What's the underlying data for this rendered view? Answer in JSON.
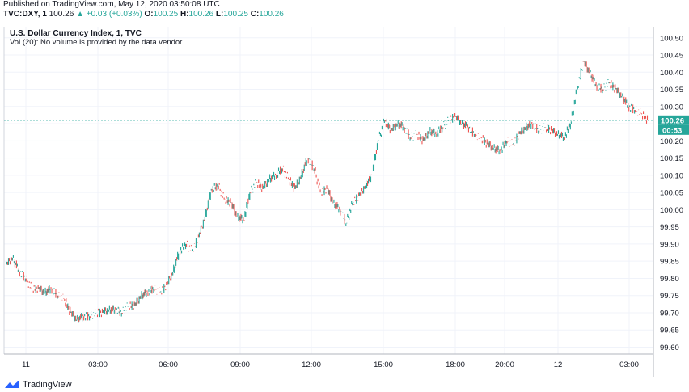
{
  "header": {
    "published": "Published on TradingView.com, May 12, 2020 03:50:08 UTC",
    "symbol": "TVC:DXY, 1",
    "price": "100.26",
    "change": "+0.03 (+0.03%)",
    "o_label": "O:",
    "o_value": "100.25",
    "h_label": "H:",
    "h_value": "100.26",
    "l_label": "L:",
    "l_value": "100.25",
    "c_label": "C:",
    "c_value": "100.26"
  },
  "colors": {
    "up": "#26a69a",
    "down": "#ef5350",
    "price_line": "#26a69a"
  },
  "chart_data": {
    "type": "line",
    "title": "U.S. Dollar Currency Index, 1, TVC",
    "subtitle": "Vol (20): No volume is provided by the data vendor.",
    "ylim": [
      99.58,
      100.53
    ],
    "y_ticks": [
      "100.50",
      "100.45",
      "100.40",
      "100.35",
      "100.30",
      "100.25",
      "100.20",
      "100.15",
      "100.10",
      "100.05",
      "100.00",
      "99.95",
      "99.90",
      "99.85",
      "99.80",
      "99.75",
      "99.70",
      "99.65",
      "99.60"
    ],
    "x_ticks": [
      "11",
      "03:00",
      "06:00",
      "09:00",
      "12:00",
      "15:00",
      "18:00",
      "20:00",
      "12",
      "03:00"
    ],
    "grid": true,
    "current_price": "100.26",
    "countdown": "00:53",
    "series": [
      {
        "x": [
          0,
          0.01,
          0.02,
          0.03,
          0.04,
          0.05,
          0.06,
          0.07,
          0.08,
          0.09,
          0.1,
          0.11,
          0.12,
          0.13,
          0.14,
          0.15,
          0.16,
          0.17,
          0.18,
          0.19,
          0.2,
          0.21,
          0.22,
          0.23,
          0.24,
          0.25,
          0.26,
          0.27,
          0.28,
          0.29,
          0.3,
          0.31,
          0.32,
          0.33,
          0.34,
          0.35,
          0.36,
          0.37,
          0.38,
          0.39,
          0.4,
          0.41,
          0.42,
          0.43,
          0.44,
          0.45,
          0.46,
          0.47,
          0.48,
          0.49,
          0.5,
          0.51,
          0.52,
          0.53,
          0.54,
          0.55,
          0.56,
          0.57,
          0.58,
          0.59,
          0.6,
          0.61,
          0.62,
          0.63,
          0.64,
          0.65,
          0.66,
          0.67,
          0.68,
          0.69,
          0.7,
          0.71,
          0.72,
          0.73,
          0.74,
          0.75,
          0.76,
          0.77,
          0.78,
          0.79,
          0.8,
          0.81,
          0.82,
          0.83,
          0.84,
          0.85,
          0.86,
          0.87,
          0.88,
          0.89,
          0.9,
          0.91,
          0.92,
          0.93,
          0.94,
          0.95,
          0.96,
          0.97,
          0.98,
          0.99,
          1.0
        ],
        "values": [
          99.84,
          99.86,
          99.82,
          99.8,
          99.77,
          99.77,
          99.76,
          99.77,
          99.75,
          99.74,
          99.7,
          99.68,
          99.69,
          99.69,
          99.7,
          99.7,
          99.71,
          99.71,
          99.7,
          99.72,
          99.72,
          99.75,
          99.76,
          99.77,
          99.76,
          99.78,
          99.82,
          99.88,
          99.9,
          99.88,
          99.92,
          99.98,
          100.06,
          100.07,
          100.03,
          100.02,
          99.98,
          99.97,
          100.05,
          100.08,
          100.06,
          100.09,
          100.1,
          100.12,
          100.09,
          100.06,
          100.1,
          100.15,
          100.12,
          100.05,
          100.06,
          100.02,
          100.0,
          99.96,
          100.02,
          100.04,
          100.07,
          100.1,
          100.2,
          100.26,
          100.23,
          100.25,
          100.24,
          100.21,
          100.22,
          100.2,
          100.23,
          100.22,
          100.24,
          100.26,
          100.27,
          100.25,
          100.24,
          100.22,
          100.21,
          100.19,
          100.18,
          100.17,
          100.2,
          100.19,
          100.22,
          100.24,
          100.25,
          100.23,
          100.24,
          100.23,
          100.22,
          100.21,
          100.25,
          100.35,
          100.43,
          100.4,
          100.36,
          100.35,
          100.37,
          100.35,
          100.33,
          100.3,
          100.29,
          100.28,
          100.26
        ]
      }
    ]
  },
  "footer": {
    "brand": "TradingView"
  }
}
